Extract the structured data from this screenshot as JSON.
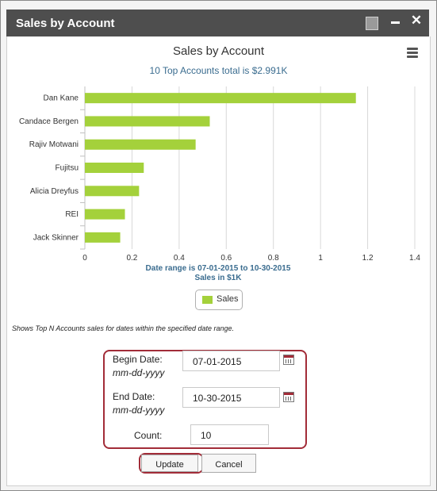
{
  "window": {
    "title": "Sales by Account"
  },
  "chart_data": {
    "type": "bar",
    "orientation": "horizontal",
    "title": "Sales by Account",
    "subtitle": "10 Top Accounts total is $2.991K",
    "categories": [
      "Dan Kane",
      "Candace Bergen",
      "Rajiv Motwani",
      "Fujitsu",
      "Alicia Dreyfus",
      "REI",
      "Jack Skinner"
    ],
    "series": [
      {
        "name": "Sales",
        "values": [
          1.15,
          0.53,
          0.47,
          0.25,
          0.23,
          0.17,
          0.15
        ]
      }
    ],
    "xlim": [
      0,
      1.4
    ],
    "xticks": [
      "0",
      "0.2",
      "0.4",
      "0.6",
      "0.8",
      "1",
      "1.2",
      "1.4"
    ],
    "xlabel_line1": "Date range is 07-01-2015 to 10-30-2015",
    "xlabel_line2": "Sales in $1K",
    "grid": true,
    "legend": "bottom-center",
    "color": "#a4d13b"
  },
  "note": "Shows Top N Accounts sales for dates within the specified date range.",
  "form": {
    "begin_label": "Begin Date:",
    "begin_hint": "mm-dd-yyyy",
    "begin_value": "07-01-2015",
    "end_label": "End Date:",
    "end_hint": "mm-dd-yyyy",
    "end_value": "10-30-2015",
    "count_label": "Count:",
    "count_value": "10"
  },
  "buttons": {
    "update": "Update",
    "cancel": "Cancel"
  },
  "icons": {
    "maximize": "maximize-icon",
    "minimize": "minimize-icon",
    "close": "close-icon",
    "menu": "hamburger-menu-icon",
    "calendar": "calendar-icon"
  }
}
